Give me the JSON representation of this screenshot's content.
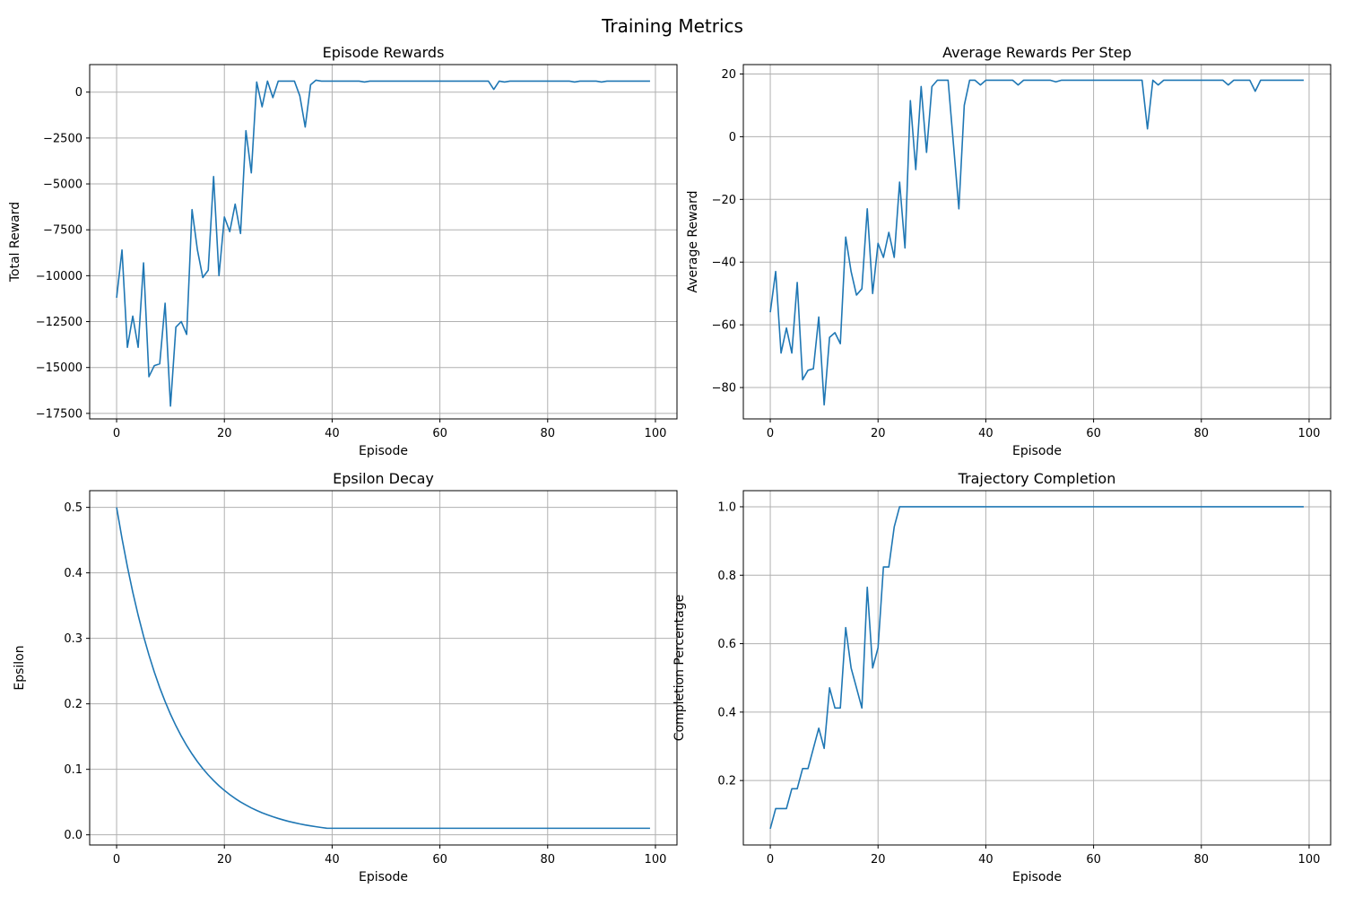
{
  "figure": {
    "title": "Training Metrics",
    "line_color": "#1f77b4",
    "grid_color": "#b0b0b0"
  },
  "chart_data": [
    {
      "type": "line",
      "title": "Episode Rewards",
      "xlabel": "Episode",
      "ylabel": "Total Reward",
      "xlim": [
        -5,
        104
      ],
      "ylim": [
        -17800,
        1500
      ],
      "grid": true,
      "xticks": [
        0,
        20,
        40,
        60,
        80,
        100
      ],
      "yticks": [
        0,
        -2500,
        -5000,
        -7500,
        -10000,
        -12500,
        -15000,
        -17500
      ],
      "ytick_labels": [
        "0",
        "−2500",
        "−5000",
        "−7500",
        "−10000",
        "−12500",
        "−15000",
        "−17500"
      ],
      "series": [
        {
          "x": [
            0,
            1,
            2,
            3,
            4,
            5,
            6,
            7,
            8,
            9,
            10,
            11,
            12,
            13,
            14,
            15,
            16,
            17,
            18,
            19,
            20,
            21,
            22,
            23,
            24,
            25,
            26,
            27,
            28,
            29,
            30,
            31,
            32,
            33,
            34,
            35,
            36,
            37,
            38,
            39,
            40,
            41,
            42,
            43,
            44,
            45,
            46,
            47,
            48,
            49,
            50,
            51,
            52,
            53,
            54,
            55,
            56,
            57,
            58,
            59,
            60,
            61,
            62,
            63,
            64,
            65,
            66,
            67,
            68,
            69,
            70,
            71,
            72,
            73,
            74,
            75,
            76,
            77,
            78,
            79,
            80,
            81,
            82,
            83,
            84,
            85,
            86,
            87,
            88,
            89,
            90,
            91,
            92,
            93,
            94,
            95,
            96,
            97,
            98,
            99
          ],
          "y": [
            -11200,
            -8600,
            -13900,
            -12200,
            -13900,
            -9300,
            -15500,
            -14900,
            -14800,
            -11500,
            -17100,
            -12800,
            -12500,
            -13200,
            -6400,
            -8600,
            -10100,
            -9700,
            -4600,
            -10000,
            -6800,
            -7600,
            -6100,
            -7700,
            -2100,
            -4400,
            550,
            -800,
            600,
            -300,
            600,
            600,
            600,
            600,
            -200,
            -1900,
            400,
            650,
            600,
            600,
            600,
            600,
            600,
            600,
            600,
            600,
            550,
            600,
            600,
            600,
            600,
            600,
            600,
            600,
            600,
            600,
            600,
            600,
            600,
            600,
            600,
            600,
            600,
            600,
            600,
            600,
            600,
            600,
            600,
            600,
            150,
            600,
            550,
            600,
            600,
            600,
            600,
            600,
            600,
            600,
            600,
            600,
            600,
            600,
            600,
            550,
            600,
            600,
            600,
            600,
            550,
            600,
            600,
            600,
            600,
            600,
            600,
            600,
            600,
            600
          ]
        }
      ]
    },
    {
      "type": "line",
      "title": "Average Rewards Per Step",
      "xlabel": "Episode",
      "ylabel": "Average Reward",
      "xlim": [
        -5,
        104
      ],
      "ylim": [
        -90,
        23
      ],
      "grid": true,
      "xticks": [
        0,
        20,
        40,
        60,
        80,
        100
      ],
      "yticks": [
        20,
        0,
        -20,
        -40,
        -60,
        -80
      ],
      "ytick_labels": [
        "20",
        "0",
        "−20",
        "−40",
        "−60",
        "−80"
      ],
      "series": [
        {
          "x": [
            0,
            1,
            2,
            3,
            4,
            5,
            6,
            7,
            8,
            9,
            10,
            11,
            12,
            13,
            14,
            15,
            16,
            17,
            18,
            19,
            20,
            21,
            22,
            23,
            24,
            25,
            26,
            27,
            28,
            29,
            30,
            31,
            32,
            33,
            34,
            35,
            36,
            37,
            38,
            39,
            40,
            41,
            42,
            43,
            44,
            45,
            46,
            47,
            48,
            49,
            50,
            51,
            52,
            53,
            54,
            55,
            56,
            57,
            58,
            59,
            60,
            61,
            62,
            63,
            64,
            65,
            66,
            67,
            68,
            69,
            70,
            71,
            72,
            73,
            74,
            75,
            76,
            77,
            78,
            79,
            80,
            81,
            82,
            83,
            84,
            85,
            86,
            87,
            88,
            89,
            90,
            91,
            92,
            93,
            94,
            95,
            96,
            97,
            98,
            99
          ],
          "y": [
            -56,
            -43,
            -69,
            -61,
            -69,
            -46.5,
            -77.5,
            -74.5,
            -74,
            -57.5,
            -85.5,
            -64,
            -62.5,
            -66,
            -32,
            -43,
            -50.5,
            -48.5,
            -23,
            -50,
            -34,
            -38.5,
            -30.5,
            -38.5,
            -14.5,
            -35.5,
            11.5,
            -10.5,
            16,
            -5,
            16,
            18,
            18,
            18,
            -2.5,
            -23,
            10,
            18,
            18,
            16.5,
            18,
            18,
            18,
            18,
            18,
            18,
            16.5,
            18,
            18,
            18,
            18,
            18,
            18,
            17.5,
            18,
            18,
            18,
            18,
            18,
            18,
            18,
            18,
            18,
            18,
            18,
            18,
            18,
            18,
            18,
            18,
            2.5,
            18,
            16.5,
            18,
            18,
            18,
            18,
            18,
            18,
            18,
            18,
            18,
            18,
            18,
            18,
            16.5,
            18,
            18,
            18,
            18,
            14.5,
            18,
            18,
            18,
            18,
            18,
            18,
            18,
            18,
            18
          ]
        }
      ]
    },
    {
      "type": "line",
      "title": "Epsilon Decay",
      "xlabel": "Episode",
      "ylabel": "Epsilon",
      "xlim": [
        -5,
        104
      ],
      "ylim": [
        -0.0155,
        0.5255
      ],
      "grid": true,
      "xticks": [
        0,
        20,
        40,
        60,
        80,
        100
      ],
      "yticks": [
        0.0,
        0.1,
        0.2,
        0.3,
        0.4,
        0.5
      ],
      "ytick_labels": [
        "0.0",
        "0.1",
        "0.2",
        "0.3",
        "0.4",
        "0.5"
      ],
      "series": [
        {
          "x": [
            0,
            1,
            2,
            3,
            4,
            5,
            6,
            7,
            8,
            9,
            10,
            11,
            12,
            13,
            14,
            15,
            16,
            17,
            18,
            19,
            20,
            21,
            22,
            23,
            24,
            25,
            26,
            27,
            28,
            29,
            30,
            31,
            32,
            33,
            34,
            35,
            36,
            37,
            38,
            39,
            40,
            41,
            42,
            43,
            44,
            45,
            46,
            47,
            48,
            49,
            50,
            51,
            52,
            53,
            54,
            55,
            56,
            57,
            58,
            59,
            60,
            61,
            62,
            63,
            64,
            65,
            66,
            67,
            68,
            69,
            70,
            71,
            72,
            73,
            74,
            75,
            76,
            77,
            78,
            79,
            80,
            81,
            82,
            83,
            84,
            85,
            86,
            87,
            88,
            89,
            90,
            91,
            92,
            93,
            94,
            95,
            96,
            97,
            98,
            99
          ],
          "y": [
            0.5,
            0.4525,
            0.4095,
            0.3705,
            0.3353,
            0.3034,
            0.2746,
            0.2485,
            0.2248,
            0.2035,
            0.1841,
            0.1666,
            0.1508,
            0.1364,
            0.1235,
            0.1117,
            0.1011,
            0.0915,
            0.0828,
            0.0749,
            0.0678,
            0.0614,
            0.0555,
            0.0502,
            0.0455,
            0.0411,
            0.0372,
            0.0337,
            0.0305,
            0.0276,
            0.025,
            0.0226,
            0.0204,
            0.0185,
            0.0167,
            0.0151,
            0.0137,
            0.0124,
            0.0112,
            0.0101,
            0.01,
            0.01,
            0.01,
            0.01,
            0.01,
            0.01,
            0.01,
            0.01,
            0.01,
            0.01,
            0.01,
            0.01,
            0.01,
            0.01,
            0.01,
            0.01,
            0.01,
            0.01,
            0.01,
            0.01,
            0.01,
            0.01,
            0.01,
            0.01,
            0.01,
            0.01,
            0.01,
            0.01,
            0.01,
            0.01,
            0.01,
            0.01,
            0.01,
            0.01,
            0.01,
            0.01,
            0.01,
            0.01,
            0.01,
            0.01,
            0.01,
            0.01,
            0.01,
            0.01,
            0.01,
            0.01,
            0.01,
            0.01,
            0.01,
            0.01,
            0.01,
            0.01,
            0.01,
            0.01,
            0.01,
            0.01,
            0.01,
            0.01,
            0.01,
            0.01
          ]
        }
      ]
    },
    {
      "type": "line",
      "title": "Trajectory Completion",
      "xlabel": "Episode",
      "ylabel": "Completion Percentage",
      "xlim": [
        -5,
        104
      ],
      "ylim": [
        0.0117,
        1.0471
      ],
      "grid": true,
      "xticks": [
        0,
        20,
        40,
        60,
        80,
        100
      ],
      "yticks": [
        0.2,
        0.4,
        0.6,
        0.8,
        1.0
      ],
      "ytick_labels": [
        "0.2",
        "0.4",
        "0.6",
        "0.8",
        "1.0"
      ],
      "series": [
        {
          "x": [
            0,
            1,
            2,
            3,
            4,
            5,
            6,
            7,
            8,
            9,
            10,
            11,
            12,
            13,
            14,
            15,
            16,
            17,
            18,
            19,
            20,
            21,
            22,
            23,
            24,
            25,
            26,
            27,
            28,
            29,
            30,
            31,
            32,
            33,
            34,
            35,
            36,
            37,
            38,
            39,
            40,
            41,
            42,
            43,
            44,
            45,
            46,
            47,
            48,
            49,
            50,
            51,
            52,
            53,
            54,
            55,
            56,
            57,
            58,
            59,
            60,
            61,
            62,
            63,
            64,
            65,
            66,
            67,
            68,
            69,
            70,
            71,
            72,
            73,
            74,
            75,
            76,
            77,
            78,
            79,
            80,
            81,
            82,
            83,
            84,
            85,
            86,
            87,
            88,
            89,
            90,
            91,
            92,
            93,
            94,
            95,
            96,
            97,
            98,
            99
          ],
          "y": [
            0.059,
            0.118,
            0.118,
            0.118,
            0.176,
            0.176,
            0.235,
            0.235,
            0.294,
            0.353,
            0.294,
            0.471,
            0.412,
            0.412,
            0.647,
            0.529,
            0.471,
            0.412,
            0.765,
            0.529,
            0.588,
            0.824,
            0.824,
            0.941,
            1.0,
            1.0,
            1.0,
            1.0,
            1.0,
            1.0,
            1.0,
            1.0,
            1.0,
            1.0,
            1.0,
            1.0,
            1.0,
            1.0,
            1.0,
            1.0,
            1.0,
            1.0,
            1.0,
            1.0,
            1.0,
            1.0,
            1.0,
            1.0,
            1.0,
            1.0,
            1.0,
            1.0,
            1.0,
            1.0,
            1.0,
            1.0,
            1.0,
            1.0,
            1.0,
            1.0,
            1.0,
            1.0,
            1.0,
            1.0,
            1.0,
            1.0,
            1.0,
            1.0,
            1.0,
            1.0,
            1.0,
            1.0,
            1.0,
            1.0,
            1.0,
            1.0,
            1.0,
            1.0,
            1.0,
            1.0,
            1.0,
            1.0,
            1.0,
            1.0,
            1.0,
            1.0,
            1.0,
            1.0,
            1.0,
            1.0,
            1.0,
            1.0,
            1.0,
            1.0,
            1.0,
            1.0,
            1.0,
            1.0,
            1.0,
            1.0
          ]
        }
      ]
    }
  ]
}
